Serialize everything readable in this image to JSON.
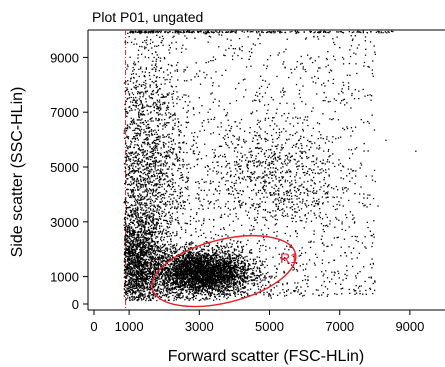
{
  "chart_data": {
    "type": "scatter",
    "title": "Plot P01, ungated",
    "xlabel": "Forward scatter (FSC-HLin)",
    "ylabel": "Side scatter (SSC-HLin)",
    "xlim": [
      0,
      10000
    ],
    "ylim": [
      0,
      10000
    ],
    "x_ticks": [
      0,
      1000,
      3000,
      5000,
      7000,
      9000
    ],
    "x_tick_labels": [
      "0",
      "1000",
      "3000",
      "5000",
      "7000",
      "9000"
    ],
    "y_ticks": [
      0,
      1000,
      3000,
      5000,
      7000,
      9000
    ],
    "y_tick_labels": [
      "0",
      "1000",
      "3000",
      "5000",
      "7000",
      "9000"
    ],
    "grid": false,
    "point_color": "#000000",
    "threshold_line": {
      "x": 900,
      "color": "#e8202a",
      "style": "dash-dot"
    },
    "region": {
      "name": "R1",
      "shape": "ellipse",
      "center": [
        3700,
        1200
      ],
      "radius_x": 2100,
      "radius_y": 1150,
      "rotation_deg": -14,
      "color": "#e8202a"
    },
    "populations": [
      {
        "description_x": "main cluster",
        "mean": [
          3050,
          1150
        ],
        "sd": [
          700,
          420
        ],
        "count": 3600
      },
      {
        "description_x": "low debris",
        "mean": [
          1200,
          1400
        ],
        "sd": [
          350,
          900
        ],
        "count": 1600
      },
      {
        "description_x": "vertical streak",
        "mean": [
          1400,
          4500
        ],
        "sd": [
          600,
          2400
        ],
        "count": 2200
      },
      {
        "description_x": "right blob",
        "mean": [
          5100,
          4700
        ],
        "sd": [
          900,
          1100
        ],
        "count": 700
      },
      {
        "description_x": "diffuse background",
        "uniform_x": [
          900,
          8000
        ],
        "uniform_y": [
          300,
          9900
        ],
        "count": 1500
      },
      {
        "description_x": "top saturation",
        "uniform_x": [
          1000,
          8500
        ],
        "value_y": 9950,
        "count": 250
      }
    ],
    "outliers": [
      [
        9150,
        5600
      ],
      [
        8300,
        6000
      ],
      [
        7600,
        5100
      ],
      [
        2300,
        300
      ],
      [
        4200,
        250
      ]
    ]
  }
}
